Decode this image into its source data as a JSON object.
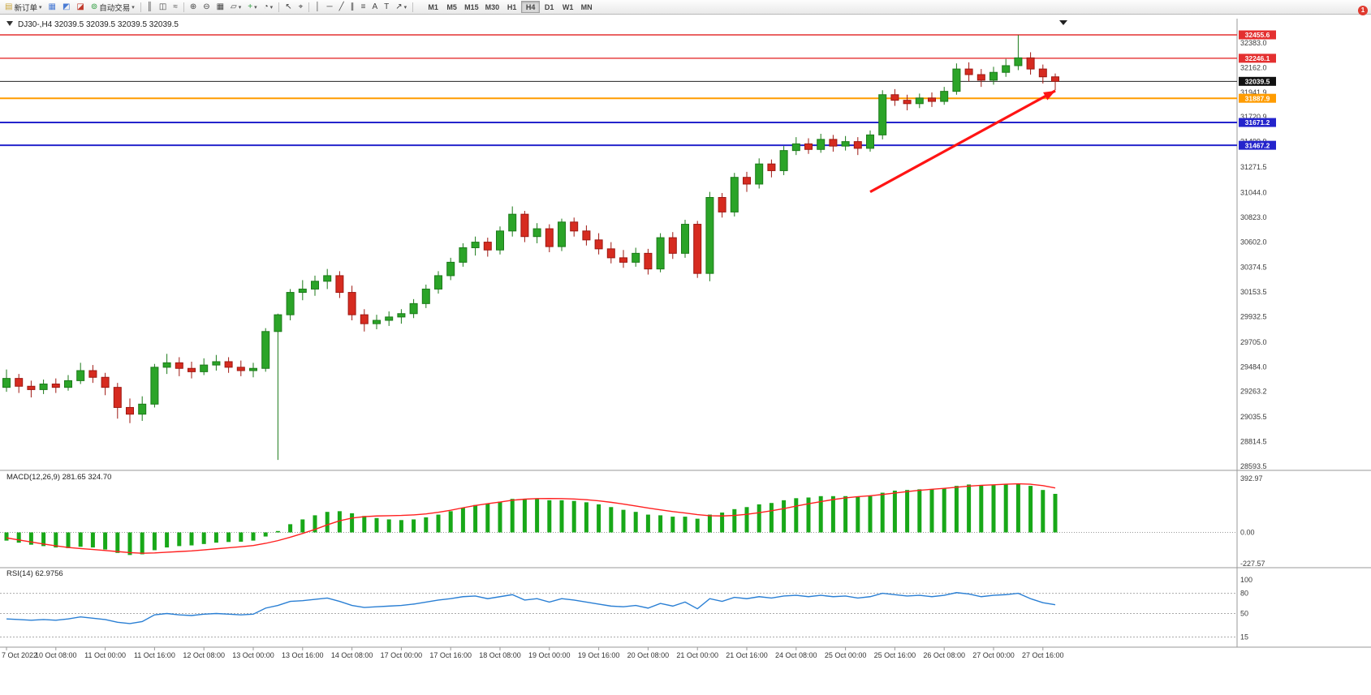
{
  "toolbar": {
    "notification_badge": "1",
    "active_timeframe": "H4",
    "timeframes": [
      "M1",
      "M5",
      "M15",
      "M30",
      "H1",
      "H4",
      "D1",
      "W1",
      "MN"
    ],
    "buttons": [
      {
        "name": "new-order-button",
        "glyph": "▤",
        "glyph_color": "#caa53a",
        "label": "新订单",
        "dropdown": true
      },
      {
        "name": "market-watch-button",
        "glyph": "▦",
        "glyph_color": "#4a7bd4"
      },
      {
        "name": "navigator-button",
        "glyph": "◩",
        "glyph_color": "#4a7bd4"
      },
      {
        "name": "terminal-button",
        "glyph": "◪",
        "glyph_color": "#c0392b"
      },
      {
        "name": "auto-trading-button",
        "glyph": "⊚",
        "glyph_color": "#2e9e3f",
        "label": "自动交易",
        "dropdown": true
      },
      {
        "separator": true
      },
      {
        "name": "bar-chart-button",
        "glyph": "║",
        "glyph_color": "#444444"
      },
      {
        "name": "candlestick-chart-button",
        "glyph": "◫",
        "glyph_color": "#444444"
      },
      {
        "name": "line-chart-button",
        "glyph": "≈",
        "glyph_color": "#444444"
      },
      {
        "separator": true
      },
      {
        "name": "zoom-in-button",
        "glyph": "⊕",
        "glyph_color": "#444444"
      },
      {
        "name": "zoom-out-button",
        "glyph": "⊖",
        "glyph_color": "#444444"
      },
      {
        "name": "tile-windows-button",
        "glyph": "▦",
        "glyph_color": "#444444"
      },
      {
        "name": "cascade-windows-button",
        "glyph": "▱",
        "glyph_color": "#444444",
        "dropdown": true
      },
      {
        "name": "indicators-button",
        "glyph": "+",
        "glyph_color": "#2e9e3f",
        "dropdown": true
      },
      {
        "name": "periodicity-button",
        "glyph": "◔",
        "glyph_color": "#444444",
        "dropdown": true
      },
      {
        "separator": true
      },
      {
        "name": "cursor-button",
        "glyph": "↖",
        "glyph_color": "#444444"
      },
      {
        "name": "crosshair-button",
        "glyph": "⌖",
        "glyph_color": "#444444"
      },
      {
        "separator": true
      },
      {
        "name": "vertical-line-button",
        "glyph": "│",
        "glyph_color": "#444444"
      },
      {
        "name": "horizontal-line-button",
        "glyph": "─",
        "glyph_color": "#444444"
      },
      {
        "name": "trendline-button",
        "glyph": "╱",
        "glyph_color": "#444444"
      },
      {
        "name": "channel-button",
        "glyph": "∥",
        "glyph_color": "#444444"
      },
      {
        "name": "fibonacci-button",
        "glyph": "≡",
        "glyph_color": "#444444"
      },
      {
        "name": "text-button",
        "glyph": "A",
        "glyph_color": "#444444"
      },
      {
        "name": "text-label-button",
        "glyph": "T",
        "glyph_color": "#444444"
      },
      {
        "name": "arrows-button",
        "glyph": "↗",
        "glyph_color": "#444444",
        "dropdown": true
      },
      {
        "separator": true
      }
    ]
  },
  "colors": {
    "up_candle": "#2ba428",
    "up_border": "#1c7a1a",
    "down_candle": "#d62b20",
    "down_border": "#9e1812",
    "macd_histogram": "#18a818",
    "macd_signal": "#ff2020",
    "rsi_line": "#2a7fd4",
    "level_red": "#e43030",
    "level_orange": "#ff9c00",
    "level_blue": "#2424cc",
    "current_price": "#222222"
  },
  "chart_data": {
    "type": "candlestick",
    "symbol": "DJ30-",
    "timeframe": "H4",
    "title": "DJ30-,H4  32039.5 32039.5 32039.5 32039.5",
    "current_price": 32039.5,
    "x_label_every": 4,
    "x_labels": [
      "7 Oct 2022",
      "10 Oct 08:00",
      "11 Oct 00:00",
      "11 Oct 16:00",
      "12 Oct 08:00",
      "13 Oct 00:00",
      "13 Oct 16:00",
      "14 Oct 08:00",
      "17 Oct 00:00",
      "17 Oct 16:00",
      "18 Oct 08:00",
      "19 Oct 00:00",
      "19 Oct 16:00",
      "20 Oct 08:00",
      "21 Oct 00:00",
      "21 Oct 16:00",
      "24 Oct 08:00",
      "25 Oct 00:00",
      "25 Oct 16:00",
      "26 Oct 08:00",
      "27 Oct 00:00",
      "27 Oct 16:00"
    ],
    "y_axis_labels": [
      "32383.0",
      "32162.0",
      "31941.9",
      "31720.9",
      "31499.9",
      "31271.5",
      "31044.0",
      "30823.0",
      "30602.0",
      "30374.5",
      "30153.5",
      "29932.5",
      "29705.0",
      "29484.0",
      "29263.2",
      "29035.5",
      "28814.5",
      "28593.5"
    ],
    "levels": [
      {
        "price": 32455.6,
        "label": "32455.6",
        "color_key": "level_red",
        "width": 1.4
      },
      {
        "price": 32246.1,
        "label": "32246.1",
        "color_key": "level_red",
        "width": 1.4
      },
      {
        "price": 32039.5,
        "label": "32039.5",
        "color_key": "current_price",
        "width": 1
      },
      {
        "price": 31887.9,
        "label": "31887.9",
        "color_key": "level_orange",
        "width": 2
      },
      {
        "price": 31671.2,
        "label": "31671.2",
        "color_key": "level_blue",
        "width": 2
      },
      {
        "price": 31467.2,
        "label": "31467.2",
        "color_key": "level_blue",
        "width": 2
      }
    ],
    "trend_arrow": {
      "from_bar": 70,
      "from_price": 31050,
      "to_bar": 85,
      "to_price": 31955,
      "color": "#ff1414"
    },
    "candles": [
      [
        29300,
        29460,
        29260,
        29380
      ],
      [
        29380,
        29420,
        29250,
        29310
      ],
      [
        29310,
        29360,
        29210,
        29280
      ],
      [
        29280,
        29370,
        29240,
        29330
      ],
      [
        29330,
        29380,
        29250,
        29300
      ],
      [
        29300,
        29410,
        29270,
        29360
      ],
      [
        29360,
        29520,
        29330,
        29450
      ],
      [
        29450,
        29500,
        29340,
        29390
      ],
      [
        29390,
        29430,
        29230,
        29300
      ],
      [
        29300,
        29340,
        29020,
        29120
      ],
      [
        29120,
        29200,
        28980,
        29060
      ],
      [
        29060,
        29220,
        29000,
        29150
      ],
      [
        29150,
        29510,
        29120,
        29480
      ],
      [
        29480,
        29600,
        29420,
        29520
      ],
      [
        29520,
        29570,
        29400,
        29470
      ],
      [
        29470,
        29530,
        29380,
        29440
      ],
      [
        29440,
        29560,
        29410,
        29500
      ],
      [
        29500,
        29590,
        29450,
        29530
      ],
      [
        29530,
        29570,
        29430,
        29480
      ],
      [
        29480,
        29540,
        29400,
        29450
      ],
      [
        29450,
        29520,
        29390,
        29470
      ],
      [
        29470,
        29830,
        29440,
        29800
      ],
      [
        29800,
        29960,
        28650,
        29950
      ],
      [
        29950,
        30180,
        29900,
        30150
      ],
      [
        30150,
        30260,
        30080,
        30180
      ],
      [
        30180,
        30300,
        30120,
        30250
      ],
      [
        30250,
        30360,
        30180,
        30300
      ],
      [
        30300,
        30340,
        30100,
        30150
      ],
      [
        30150,
        30210,
        29900,
        29950
      ],
      [
        29950,
        30000,
        29800,
        29870
      ],
      [
        29870,
        29950,
        29820,
        29900
      ],
      [
        29900,
        29980,
        29850,
        29930
      ],
      [
        29930,
        30000,
        29870,
        29960
      ],
      [
        29960,
        30090,
        29920,
        30050
      ],
      [
        30050,
        30220,
        30010,
        30180
      ],
      [
        30180,
        30340,
        30140,
        30300
      ],
      [
        30300,
        30460,
        30260,
        30420
      ],
      [
        30420,
        30590,
        30380,
        30550
      ],
      [
        30550,
        30650,
        30480,
        30600
      ],
      [
        30600,
        30640,
        30470,
        30530
      ],
      [
        30530,
        30740,
        30490,
        30700
      ],
      [
        30700,
        30920,
        30650,
        30850
      ],
      [
        30850,
        30880,
        30600,
        30650
      ],
      [
        30650,
        30770,
        30590,
        30720
      ],
      [
        30720,
        30760,
        30510,
        30560
      ],
      [
        30560,
        30810,
        30520,
        30780
      ],
      [
        30780,
        30820,
        30650,
        30700
      ],
      [
        30700,
        30750,
        30570,
        30620
      ],
      [
        30620,
        30680,
        30490,
        30540
      ],
      [
        30540,
        30600,
        30410,
        30460
      ],
      [
        30460,
        30530,
        30370,
        30420
      ],
      [
        30420,
        30550,
        30380,
        30500
      ],
      [
        30500,
        30540,
        30310,
        30360
      ],
      [
        30360,
        30680,
        30330,
        30640
      ],
      [
        30640,
        30690,
        30450,
        30500
      ],
      [
        30500,
        30800,
        30460,
        30760
      ],
      [
        30760,
        30790,
        30280,
        30320
      ],
      [
        30320,
        31050,
        30250,
        31000
      ],
      [
        31000,
        31040,
        30820,
        30870
      ],
      [
        30870,
        31220,
        30830,
        31180
      ],
      [
        31180,
        31230,
        31050,
        31120
      ],
      [
        31120,
        31350,
        31080,
        31300
      ],
      [
        31300,
        31340,
        31180,
        31240
      ],
      [
        31240,
        31460,
        31200,
        31420
      ],
      [
        31420,
        31540,
        31380,
        31480
      ],
      [
        31480,
        31530,
        31390,
        31430
      ],
      [
        31430,
        31570,
        31400,
        31520
      ],
      [
        31520,
        31560,
        31410,
        31460
      ],
      [
        31460,
        31550,
        31420,
        31500
      ],
      [
        31500,
        31540,
        31380,
        31440
      ],
      [
        31440,
        31600,
        31410,
        31560
      ],
      [
        31560,
        31960,
        31520,
        31920
      ],
      [
        31920,
        31970,
        31820,
        31870
      ],
      [
        31870,
        31920,
        31780,
        31840
      ],
      [
        31840,
        31930,
        31800,
        31890
      ],
      [
        31890,
        31940,
        31810,
        31860
      ],
      [
        31860,
        31990,
        31830,
        31950
      ],
      [
        31950,
        32200,
        31920,
        32150
      ],
      [
        32150,
        32210,
        32040,
        32100
      ],
      [
        32100,
        32150,
        31990,
        32050
      ],
      [
        32050,
        32170,
        32010,
        32120
      ],
      [
        32120,
        32240,
        32080,
        32180
      ],
      [
        32180,
        32455,
        32140,
        32250
      ],
      [
        32250,
        32300,
        32100,
        32150
      ],
      [
        32150,
        32190,
        32020,
        32080
      ],
      [
        32080,
        32110,
        31960,
        32039.5
      ]
    ],
    "indicators": {
      "macd": {
        "label": "MACD(12,26,9) 281.65 324.70",
        "axis": [
          "392.97",
          "0.00",
          "-227.57"
        ],
        "histogram": [
          -60,
          -75,
          -90,
          -100,
          -110,
          -115,
          -105,
          -110,
          -125,
          -150,
          -165,
          -160,
          -130,
          -110,
          -100,
          -95,
          -85,
          -75,
          -70,
          -68,
          -60,
          -30,
          10,
          60,
          95,
          125,
          150,
          155,
          140,
          120,
          105,
          95,
          90,
          95,
          110,
          130,
          155,
          180,
          200,
          210,
          225,
          245,
          245,
          245,
          235,
          235,
          230,
          220,
          205,
          185,
          165,
          150,
          130,
          125,
          115,
          115,
          100,
          130,
          145,
          170,
          185,
          205,
          215,
          235,
          250,
          255,
          265,
          265,
          265,
          260,
          265,
          290,
          305,
          310,
          315,
          315,
          320,
          340,
          350,
          345,
          345,
          350,
          355,
          340,
          310,
          281.65
        ],
        "signal": [
          -40,
          -55,
          -70,
          -85,
          -98,
          -110,
          -118,
          -125,
          -132,
          -140,
          -148,
          -152,
          -150,
          -145,
          -140,
          -135,
          -128,
          -120,
          -112,
          -105,
          -96,
          -80,
          -60,
          -35,
          -8,
          22,
          55,
          85,
          105,
          115,
          120,
          122,
          124,
          128,
          135,
          147,
          162,
          180,
          197,
          210,
          222,
          235,
          243,
          247,
          248,
          247,
          244,
          239,
          231,
          220,
          207,
          193,
          178,
          165,
          152,
          142,
          130,
          122,
          120,
          124,
          132,
          144,
          158,
          174,
          192,
          209,
          225,
          240,
          252,
          261,
          268,
          277,
          288,
          298,
          308,
          315,
          322,
          330,
          338,
          344,
          348,
          352,
          355,
          352,
          342,
          324.7
        ]
      },
      "rsi": {
        "label": "RSI(14) 62.9756",
        "axis": [
          "100",
          "80",
          "50",
          "15"
        ],
        "levels": [
          80,
          50,
          15
        ],
        "values": [
          42,
          41,
          40,
          41,
          40,
          42,
          45,
          43,
          41,
          37,
          35,
          38,
          48,
          50,
          48,
          47,
          49,
          50,
          49,
          48,
          49,
          58,
          62,
          68,
          69,
          71,
          73,
          68,
          62,
          59,
          60,
          61,
          62,
          64,
          67,
          70,
          72,
          75,
          76,
          72,
          75,
          78,
          70,
          72,
          67,
          72,
          70,
          67,
          64,
          61,
          60,
          62,
          58,
          65,
          61,
          67,
          57,
          72,
          68,
          74,
          72,
          75,
          73,
          76,
          77,
          75,
          77,
          75,
          76,
          73,
          75,
          80,
          78,
          76,
          77,
          75,
          77,
          81,
          79,
          75,
          77,
          78,
          80,
          72,
          66,
          62.98
        ]
      }
    }
  }
}
